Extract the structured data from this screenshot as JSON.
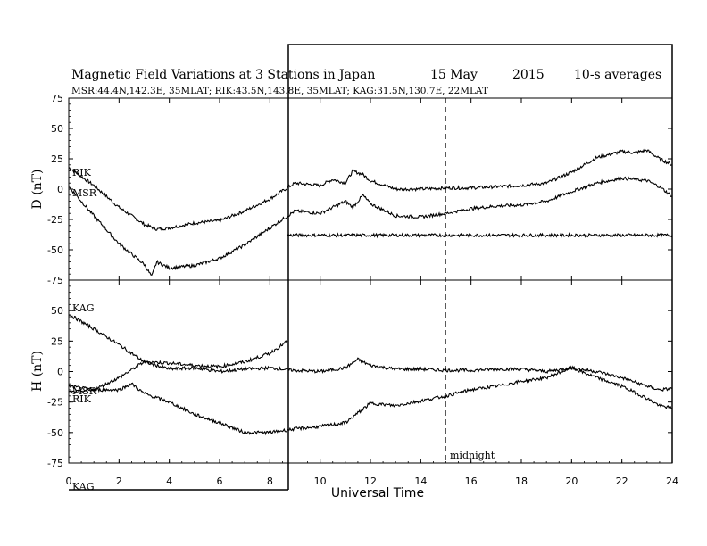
{
  "chart_data": [
    {
      "type": "line",
      "panel": "D",
      "title": "Magnetic Field Variations at 3 Stations in Japan",
      "date": "15 May",
      "year": "2015",
      "averaging": "10-s averages",
      "subtitle": "MSR:44.4N,142.3E, 35MLAT;  RIK:43.5N,143.8E, 35MLAT;  KAG:31.5N,130.7E, 22MLAT",
      "ylabel": "D (nT)",
      "xlabel": "Universal Time",
      "ylim": [
        -75,
        75
      ],
      "xlim": [
        0,
        24
      ],
      "yticks": [
        "75",
        "50",
        "25",
        "0",
        "-25",
        "-50",
        "-75"
      ],
      "xticks": [
        "0",
        "2",
        "4",
        "6",
        "8",
        "10",
        "12",
        "14",
        "16",
        "18",
        "20",
        "22",
        "24"
      ],
      "grid": false,
      "series": [
        {
          "name": "RIK",
          "x": [
            0,
            1,
            2,
            3,
            3.5,
            4,
            5,
            6,
            7,
            8,
            9,
            10,
            10.5,
            11,
            11.3,
            11.7,
            12,
            13,
            14,
            15,
            16,
            17,
            18,
            19,
            20,
            21,
            22,
            22.5,
            23,
            23.5,
            24
          ],
          "values": [
            18,
            3,
            -15,
            -29,
            -33,
            -32,
            -28,
            -26,
            -18,
            -8,
            5,
            3,
            8,
            5,
            15,
            12,
            7,
            0,
            0,
            1,
            1,
            2,
            3,
            5,
            14,
            26,
            31,
            30,
            32,
            25,
            20
          ]
        },
        {
          "name": "MSR",
          "x": [
            0,
            1,
            2,
            3,
            3.3,
            3.5,
            4,
            5,
            6,
            7,
            8,
            9,
            10,
            11,
            11.3,
            11.7,
            12,
            13,
            14,
            15,
            16,
            17,
            18,
            19,
            20,
            21,
            22,
            22.5,
            23,
            23.5,
            24
          ],
          "values": [
            2,
            -22,
            -45,
            -62,
            -72,
            -60,
            -65,
            -63,
            -57,
            -46,
            -32,
            -18,
            -20,
            -10,
            -15,
            -5,
            -12,
            -22,
            -23,
            -20,
            -16,
            -14,
            -13,
            -10,
            -2,
            5,
            9,
            8,
            7,
            2,
            -6
          ]
        },
        {
          "name": "KAG",
          "x": [
            8.7,
            10,
            12,
            14,
            16,
            18,
            20,
            22,
            24
          ],
          "values": [
            -38,
            -38,
            -38,
            -38,
            -38,
            -38,
            -38,
            -38,
            -38
          ]
        }
      ]
    },
    {
      "type": "line",
      "panel": "H",
      "ylabel": "H (nT)",
      "xlabel": "Universal Time",
      "ylim": [
        -75,
        75
      ],
      "xlim": [
        0,
        24
      ],
      "yticks": [
        "50",
        "25",
        "0",
        "-25",
        "-50",
        "-75"
      ],
      "xticks": [
        "0",
        "2",
        "4",
        "6",
        "8",
        "10",
        "12",
        "14",
        "16",
        "18",
        "20",
        "22",
        "24"
      ],
      "midline_label": "midnight",
      "midline_x": 15,
      "grid": false,
      "series": [
        {
          "name": "KAG",
          "x": [
            0,
            1,
            2,
            3,
            4,
            5,
            6,
            7,
            8,
            9,
            10,
            11,
            11.5,
            12,
            13,
            14,
            15,
            16,
            17,
            18,
            19,
            20,
            21,
            22,
            23,
            23.5,
            24
          ],
          "values": [
            47,
            35,
            22,
            8,
            2,
            3,
            0,
            2,
            3,
            1,
            0,
            3,
            10,
            5,
            2,
            2,
            1,
            1,
            2,
            2,
            0,
            3,
            0,
            -5,
            -12,
            -15,
            -14
          ]
        },
        {
          "name": "MSR",
          "x": [
            0,
            1,
            2,
            3,
            4,
            5,
            6,
            7,
            8,
            8.7
          ],
          "values": [
            -12,
            -15,
            -5,
            8,
            7,
            5,
            4,
            8,
            15,
            25
          ]
        },
        {
          "name": "RIK",
          "x": [
            0,
            1,
            2,
            2.5,
            3,
            4,
            5,
            6,
            7,
            8,
            9,
            10,
            11,
            12,
            13,
            14,
            15,
            16,
            17,
            18,
            19,
            20,
            21,
            22,
            23,
            23.5,
            24
          ],
          "values": [
            -17,
            -15,
            -15,
            -10,
            -18,
            -25,
            -35,
            -42,
            -50,
            -50,
            -47,
            -45,
            -42,
            -26,
            -28,
            -24,
            -20,
            -15,
            -12,
            -8,
            -5,
            3,
            -5,
            -12,
            -22,
            -28,
            -30
          ]
        }
      ],
      "station_labels": {
        "kag_bottom": "KAG"
      }
    }
  ]
}
